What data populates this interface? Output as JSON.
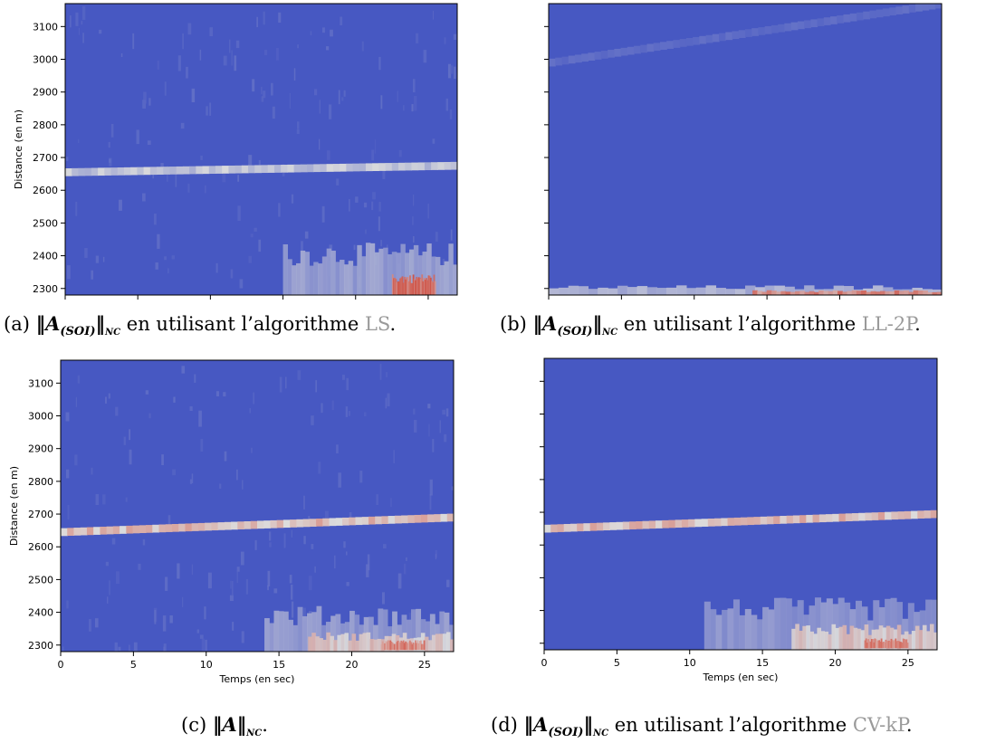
{
  "figure": {
    "colormap": "coolwarm",
    "colors": {
      "low": "#3a4cc0",
      "mid": "#dcdcdc",
      "high": "#d24c3c",
      "axis": "#000000",
      "caption_alg": "#9a9a9a"
    },
    "y_ticks": [
      2300,
      2400,
      2500,
      2600,
      2700,
      2800,
      2900,
      3000,
      3100
    ],
    "x_ticks": [
      0,
      5,
      10,
      15,
      20,
      25
    ]
  },
  "chart_data": [
    {
      "id": "a",
      "type": "heatmap",
      "ylabel": "Distance (en m)",
      "xlabel": "",
      "xlim": [
        0,
        27
      ],
      "ylim": [
        2280,
        3170
      ],
      "show_y_ticklabels": true,
      "show_x_ticklabels": false,
      "background": "fine-grain",
      "bands": [
        {
          "t0": 0,
          "t1": 27,
          "d_start": 2655,
          "d_end": 2675,
          "intensity": 0.45
        }
      ],
      "blobs": [
        {
          "t0": 15,
          "t1": 27,
          "d0": 2280,
          "d1": 2440,
          "intensity": 0.32
        },
        {
          "t0": 22.5,
          "t1": 25.5,
          "d0": 2280,
          "d1": 2345,
          "intensity": 0.95
        }
      ],
      "caption": {
        "letter": "(a)",
        "norm": "‖A(SOI)‖NC",
        "sub": "(SOI)",
        "nc": "NC",
        "text": "en utilisant l’algorithme",
        "alg": "LS",
        "end": "."
      }
    },
    {
      "id": "b",
      "type": "heatmap",
      "ylabel": "",
      "xlabel": "",
      "xlim": [
        0,
        27
      ],
      "ylim": [
        2280,
        3170
      ],
      "show_y_ticklabels": false,
      "show_x_ticklabels": false,
      "background": "flat-top-band",
      "bands": [
        {
          "t0": 0,
          "t1": 27,
          "d_start": 2990,
          "d_end": 3170,
          "intensity": 0.12
        }
      ],
      "blobs": [
        {
          "t0": 0,
          "t1": 27,
          "d0": 2280,
          "d1": 2310,
          "intensity": 0.4
        },
        {
          "t0": 14,
          "t1": 27,
          "d0": 2280,
          "d1": 2295,
          "intensity": 0.85
        }
      ],
      "caption": {
        "letter": "(b)",
        "norm": "‖A(SOI)‖NC",
        "sub": "(SOI)",
        "nc": "NC",
        "text": "en utilisant l’algorithme",
        "alg": "LL-2P",
        "end": "."
      }
    },
    {
      "id": "c",
      "type": "heatmap",
      "ylabel": "Distance (en m)",
      "xlabel": "Temps (en sec)",
      "xlim": [
        0,
        27
      ],
      "ylim": [
        2280,
        3170
      ],
      "show_y_ticklabels": true,
      "show_x_ticklabels": true,
      "background": "fine-grain",
      "bands": [
        {
          "t0": 0,
          "t1": 27,
          "d_start": 2645,
          "d_end": 2690,
          "intensity": 0.65
        }
      ],
      "blobs": [
        {
          "t0": 14,
          "t1": 27,
          "d0": 2280,
          "d1": 2420,
          "intensity": 0.3
        },
        {
          "t0": 17,
          "t1": 27,
          "d0": 2280,
          "d1": 2340,
          "intensity": 0.6
        },
        {
          "t0": 22,
          "t1": 25,
          "d0": 2285,
          "d1": 2315,
          "intensity": 0.85
        }
      ],
      "caption": {
        "letter": "(c)",
        "norm": "‖A‖NC",
        "sub": "",
        "nc": "NC",
        "text": "",
        "alg": "",
        "end": "."
      }
    },
    {
      "id": "d",
      "type": "heatmap",
      "ylabel": "",
      "xlabel": "Temps (en sec)",
      "xlim": [
        0,
        27
      ],
      "ylim": [
        2280,
        3170
      ],
      "show_y_ticklabels": false,
      "show_x_ticklabels": true,
      "background": "flat",
      "bands": [
        {
          "t0": 0,
          "t1": 27,
          "d_start": 2650,
          "d_end": 2695,
          "intensity": 0.65
        }
      ],
      "blobs": [
        {
          "t0": 11,
          "t1": 27,
          "d0": 2280,
          "d1": 2440,
          "intensity": 0.28
        },
        {
          "t0": 17,
          "t1": 27,
          "d0": 2280,
          "d1": 2360,
          "intensity": 0.6
        },
        {
          "t0": 22,
          "t1": 25,
          "d0": 2285,
          "d1": 2315,
          "intensity": 0.85
        }
      ],
      "caption": {
        "letter": "(d)",
        "norm": "‖A(SOI)‖NC",
        "sub": "(SOI)",
        "nc": "NC",
        "text": "en utilisant l’algorithme",
        "alg": "CV-kP",
        "end": "."
      }
    }
  ]
}
